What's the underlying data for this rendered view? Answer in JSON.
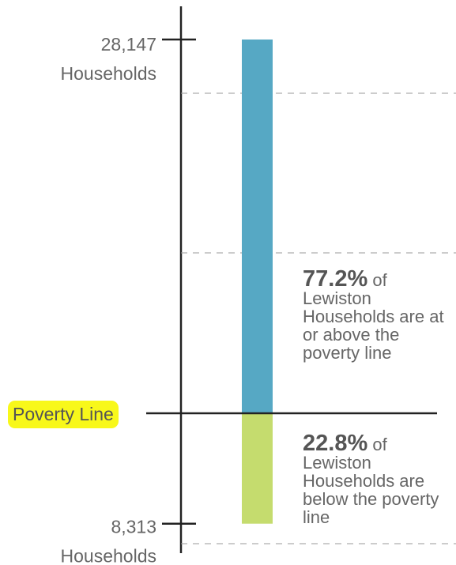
{
  "chart_data": {
    "type": "bar",
    "values": [
      28147,
      8313
    ],
    "value_labels": [
      "28,147",
      "8,313"
    ],
    "unit_label": "Households",
    "colors": [
      "#56a8c4",
      "#c5dc6e"
    ],
    "baseline_label": "Poverty Line",
    "percent_labels": [
      "77.2%",
      "22.8%"
    ],
    "annotations": [
      "of Lewiston Households are at or above the poverty line",
      "of Lewiston Households are below the poverty line"
    ]
  }
}
